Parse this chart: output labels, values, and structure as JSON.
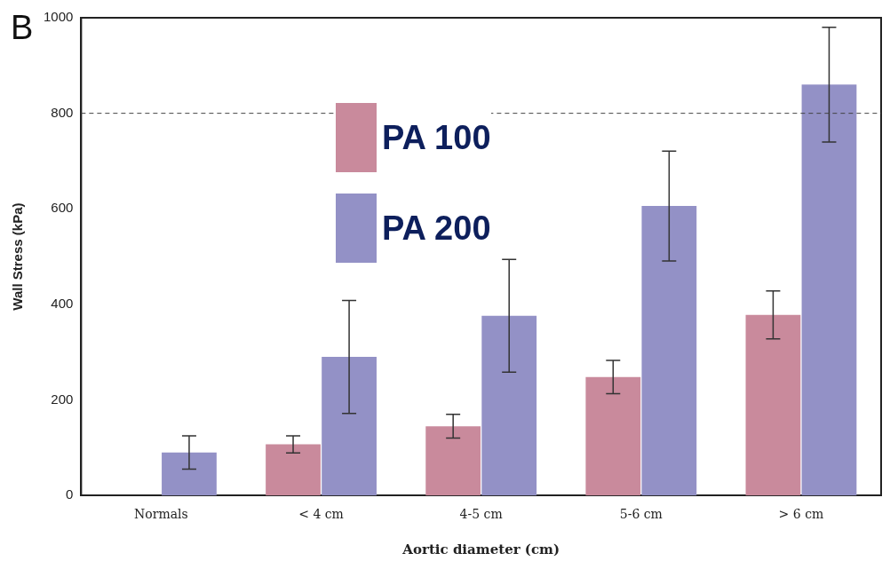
{
  "chart_data": {
    "type": "bar",
    "xlabel": "Aortic diameter (cm)",
    "ylabel": "Wall Stress (kPa)",
    "annotations": [
      "B"
    ],
    "categories": [
      "Normals",
      "< 4 cm",
      "4-5 cm",
      "5-6 cm",
      "> 6 cm"
    ],
    "series": [
      {
        "name": "PA 100",
        "color": "#c98a9c",
        "values": [
          null,
          107,
          145,
          248,
          378
        ],
        "errors": [
          null,
          18,
          25,
          35,
          50
        ]
      },
      {
        "name": "PA 200",
        "color": "#9391c6",
        "values": [
          90,
          290,
          376,
          606,
          860
        ],
        "errors": [
          35,
          118,
          118,
          115,
          120
        ]
      }
    ],
    "ylim": [
      0,
      1000
    ],
    "yticks": [
      0,
      200,
      400,
      600,
      800,
      1000
    ],
    "grid": false,
    "legend": "top left",
    "ref_lines": [
      {
        "axis": "y",
        "value": 800,
        "color": "#444444",
        "line_style": "dashed"
      }
    ]
  }
}
